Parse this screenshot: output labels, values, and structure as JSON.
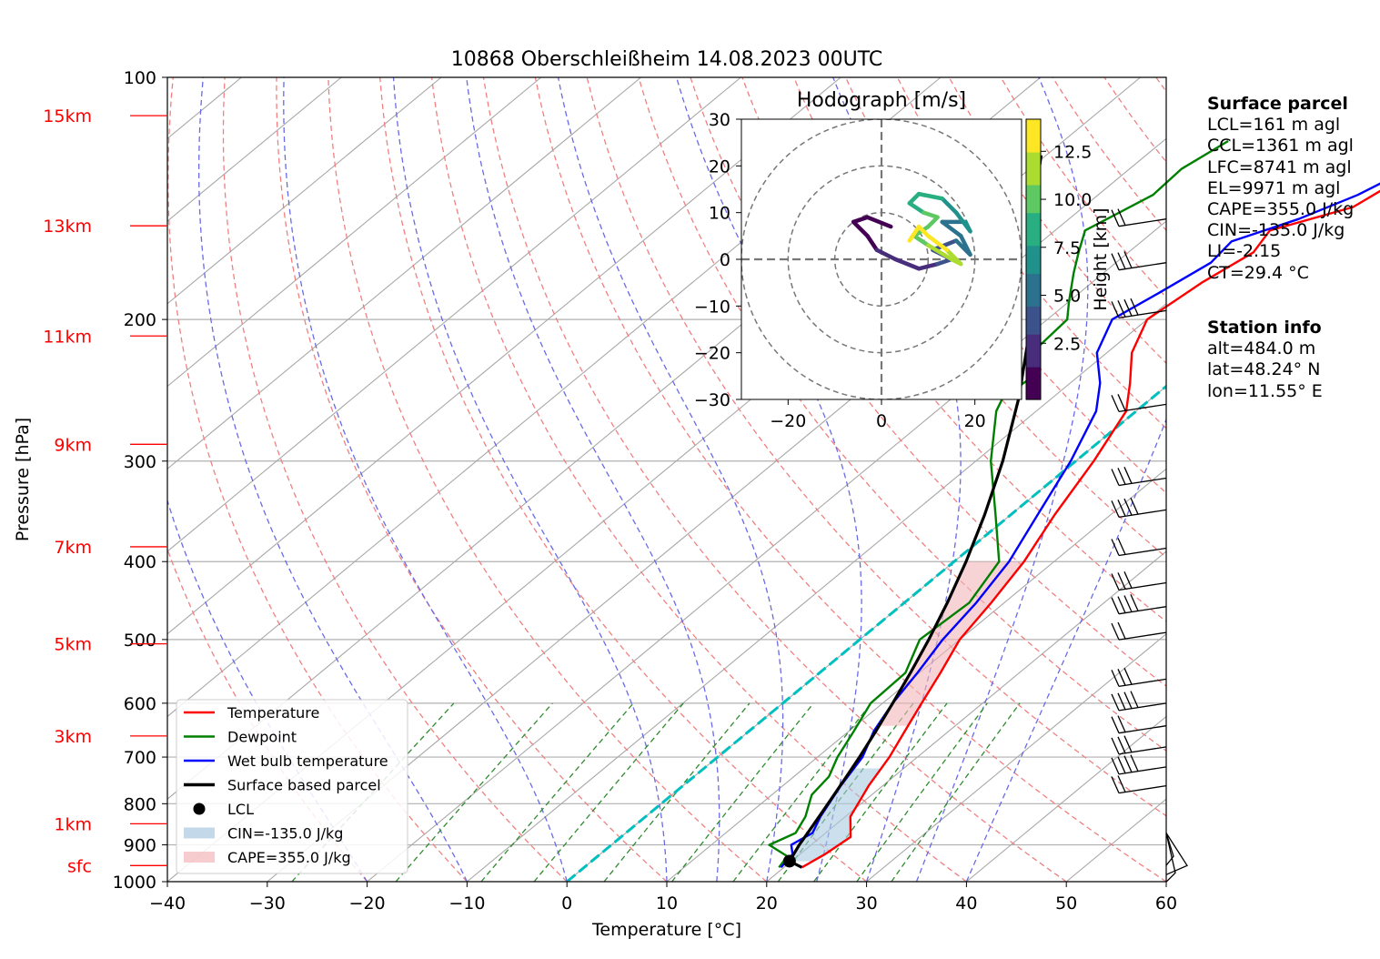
{
  "title": "10868 Oberschleißheim 14.08.2023 00UTC",
  "surface_parcel": {
    "heading": "Surface parcel",
    "lines": [
      "LCL=161 m agl",
      "CCL=1361 m agl",
      "LFC=8741 m agl",
      "EL=9971 m agl",
      "CAPE=355.0 J/kg",
      "CIN=-135.0 J/kg",
      "LI=-2.15",
      "CT=29.4 °C"
    ]
  },
  "station_info": {
    "heading": "Station info",
    "lines": [
      "alt=484.0 m",
      "lat=48.24° N",
      "lon=11.55° E"
    ]
  },
  "height_labels": [
    "15km",
    "13km",
    "11km",
    "9km",
    "7km",
    "5km",
    "3km",
    "1km",
    "sfc"
  ],
  "legend": [
    "Temperature",
    "Dewpoint",
    "Wet bulb temperature",
    "Surface based parcel",
    "LCL",
    "CIN=-135.0 J/kg",
    "CAPE=355.0 J/kg"
  ],
  "hodograph": {
    "title": "Hodograph [m/s]",
    "colorbar_label": "Height [km]",
    "colorbar_ticks": [
      "2.5",
      "5.0",
      "7.5",
      "10.0",
      "12.5"
    ],
    "x_ticks": [
      "−20",
      "0",
      "20"
    ],
    "y_ticks": [
      "30",
      "20",
      "10",
      "0",
      "−10",
      "−20",
      "−30"
    ],
    "xlim": [
      -30,
      30
    ],
    "ylim": [
      -30,
      30
    ],
    "ring_radius_ms": [
      10,
      20,
      30
    ]
  },
  "colors": {
    "temperature": "#ff0000",
    "dewpoint": "#008000",
    "wet_bulb": "#0000ff",
    "parcel": "#000000",
    "cape_fill": "#f4b6bb",
    "cin_fill": "#a9c9df",
    "height_labels": "#ff0000",
    "freezing_line": "#00bfbf"
  },
  "chart_data": {
    "type": "skew-T log-P diagram",
    "xlabel": "Temperature [°C]",
    "ylabel": "Pressure [hPa]",
    "xlim": [
      -40,
      60
    ],
    "ylim": [
      1000,
      100
    ],
    "y_scale": "log",
    "x_ticks": [
      "−40",
      "−30",
      "−20",
      "−10",
      "0",
      "10",
      "20",
      "30",
      "40",
      "50",
      "60"
    ],
    "y_ticks": [
      "100",
      "200",
      "300",
      "400",
      "500",
      "600",
      "700",
      "800",
      "900",
      "1000"
    ],
    "grid": true,
    "legend_position": "lower-left",
    "series": [
      {
        "name": "Temperature",
        "points": [
          [
            21.8,
            960
          ],
          [
            22.5,
            925
          ],
          [
            23.0,
            880
          ],
          [
            20.5,
            830
          ],
          [
            18.6,
            760
          ],
          [
            17.2,
            700
          ],
          [
            15.6,
            650
          ],
          [
            13.9,
            600
          ],
          [
            12.1,
            550
          ],
          [
            10.0,
            500
          ],
          [
            8.7,
            450
          ],
          [
            7.0,
            400
          ],
          [
            4.4,
            350
          ],
          [
            1.8,
            300
          ],
          [
            -1.0,
            260
          ],
          [
            -4.0,
            240
          ],
          [
            -7.5,
            220
          ],
          [
            -10.0,
            200
          ],
          [
            -9.0,
            180
          ],
          [
            -7.5,
            165
          ],
          [
            -8.5,
            155
          ],
          [
            -3.0,
            145
          ],
          [
            -1.8,
            135
          ],
          [
            -0.8,
            125
          ],
          [
            -0.5,
            115
          ]
        ]
      },
      {
        "name": "Dewpoint",
        "points": [
          [
            19.5,
            960
          ],
          [
            19.0,
            930
          ],
          [
            15.8,
            900
          ],
          [
            17.0,
            870
          ],
          [
            16.0,
            830
          ],
          [
            14.0,
            780
          ],
          [
            13.5,
            740
          ],
          [
            12.0,
            700
          ],
          [
            10.5,
            650
          ],
          [
            8.8,
            600
          ],
          [
            8.6,
            550
          ],
          [
            6.0,
            500
          ],
          [
            6.5,
            450
          ],
          [
            4.5,
            400
          ],
          [
            -1.5,
            350
          ],
          [
            -8.5,
            300
          ],
          [
            -14.0,
            260
          ],
          [
            -15.0,
            250
          ],
          [
            -14.5,
            235
          ],
          [
            -17.5,
            220
          ],
          [
            -18.0,
            200
          ],
          [
            -20.0,
            190
          ],
          [
            -23.0,
            175
          ],
          [
            -25.0,
            165
          ],
          [
            -27.0,
            155
          ],
          [
            -24.5,
            140
          ],
          [
            -24.8,
            130
          ],
          [
            -23.5,
            120
          ]
        ]
      },
      {
        "name": "Wet bulb temperature",
        "points": [
          [
            19.7,
            960
          ],
          [
            19.3,
            925
          ],
          [
            18.0,
            900
          ],
          [
            18.7,
            870
          ],
          [
            17.5,
            830
          ],
          [
            15.8,
            760
          ],
          [
            14.5,
            700
          ],
          [
            12.5,
            650
          ],
          [
            11.0,
            600
          ],
          [
            9.8,
            550
          ],
          [
            8.3,
            500
          ],
          [
            7.2,
            450
          ],
          [
            5.5,
            400
          ],
          [
            2.7,
            350
          ],
          [
            -0.5,
            300
          ],
          [
            -4.0,
            260
          ],
          [
            -7.0,
            240
          ],
          [
            -11.0,
            220
          ],
          [
            -13.5,
            200
          ],
          [
            -12.0,
            185
          ],
          [
            -10.5,
            170
          ],
          [
            -11.0,
            160
          ],
          [
            -7.0,
            150
          ],
          [
            -4.0,
            140
          ],
          [
            -2.0,
            130
          ],
          [
            -1.2,
            120
          ],
          [
            -0.8,
            115
          ]
        ]
      },
      {
        "name": "Surface based parcel",
        "points": [
          [
            21.8,
            960
          ],
          [
            19.8,
            943
          ],
          [
            18.8,
            900
          ],
          [
            17.8,
            850
          ],
          [
            16.7,
            800
          ],
          [
            15.5,
            750
          ],
          [
            14.2,
            700
          ],
          [
            12.7,
            650
          ],
          [
            11.0,
            600
          ],
          [
            9.1,
            550
          ],
          [
            6.9,
            500
          ],
          [
            4.3,
            450
          ],
          [
            1.2,
            400
          ],
          [
            -2.6,
            350
          ],
          [
            -7.3,
            300
          ],
          [
            -13.4,
            250
          ],
          [
            -21.6,
            200
          ],
          [
            -27.0,
            175
          ],
          [
            -33.0,
            150
          ],
          [
            -36.8,
            138
          ],
          [
            -40.5,
            125
          ]
        ]
      }
    ],
    "lcl": {
      "temperature": 19.8,
      "pressure": 943
    },
    "cape": 355.0,
    "cin": -135.0,
    "heights_km": [
      15,
      13,
      11,
      9,
      7,
      5,
      3,
      1,
      0
    ],
    "hodograph_trace": [
      [
        2,
        7
      ],
      [
        -3,
        9
      ],
      [
        -6,
        8
      ],
      [
        -3,
        5
      ],
      [
        -1,
        2
      ],
      [
        3,
        0
      ],
      [
        8,
        -2
      ],
      [
        12,
        -1
      ],
      [
        15,
        0
      ],
      [
        11,
        2
      ],
      [
        16,
        4
      ],
      [
        19,
        1
      ],
      [
        17,
        5
      ],
      [
        13,
        8
      ],
      [
        18,
        8
      ],
      [
        19,
        6
      ],
      [
        16,
        10
      ],
      [
        13,
        13
      ],
      [
        8,
        14
      ],
      [
        6,
        12
      ],
      [
        9,
        10
      ],
      [
        12,
        9
      ],
      [
        10,
        7
      ],
      [
        7,
        5
      ],
      [
        10,
        3
      ],
      [
        15,
        0
      ],
      [
        17,
        -1
      ],
      [
        14,
        2
      ],
      [
        10,
        5
      ],
      [
        8,
        7
      ],
      [
        6,
        4
      ]
    ]
  }
}
